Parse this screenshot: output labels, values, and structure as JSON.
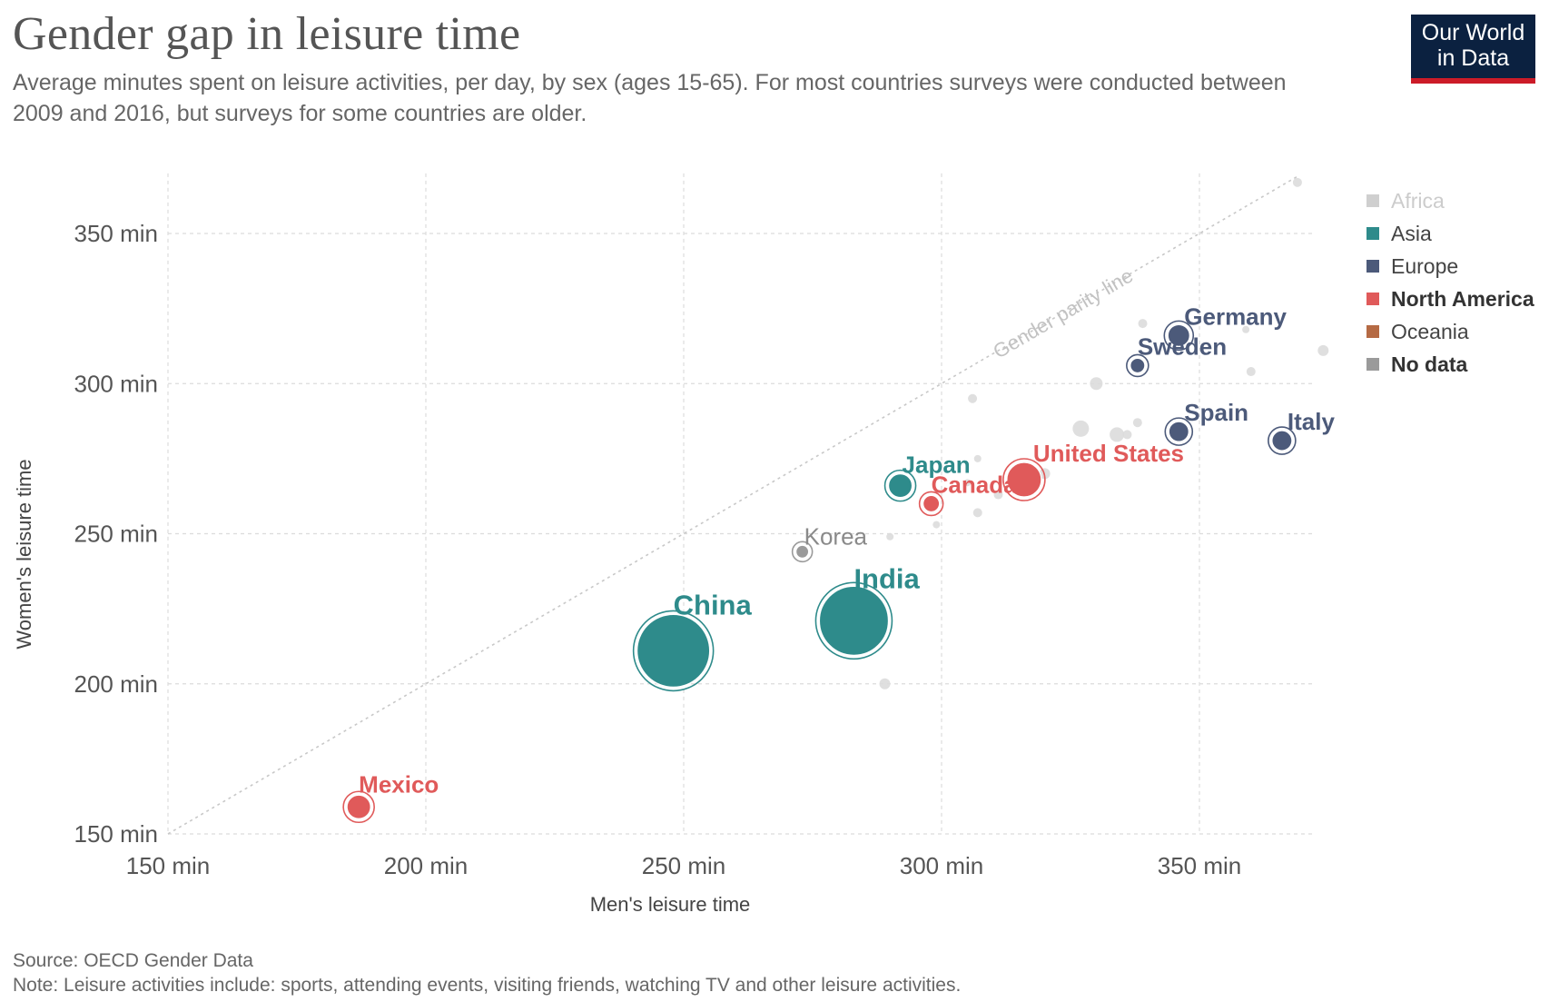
{
  "header": {
    "title": "Gender gap in leisure time",
    "subtitle": "Average minutes spent on leisure activities, per day, by sex (ages 15-65). For most countries surveys were conducted between 2009 and 2016, but surveys for some countries are older."
  },
  "logo": {
    "line1": "Our World",
    "line2": "in Data",
    "bg_color": "#0b2140",
    "accent_color": "#cc1b28"
  },
  "footer": {
    "source": "Source: OECD Gender Data",
    "note": "Note: Leisure activities include: sports, attending events, visiting friends, watching TV and other leisure activities."
  },
  "legend": [
    {
      "label": "Africa",
      "color": "#cfcfcf",
      "faded": true
    },
    {
      "label": "Asia",
      "color": "#2e8b8b"
    },
    {
      "label": "Europe",
      "color": "#4c5a7a"
    },
    {
      "label": "North America",
      "color": "#e05a5a",
      "bold": true
    },
    {
      "label": "Oceania",
      "color": "#b56a44"
    },
    {
      "label": "No data",
      "color": "#9a9a9a",
      "bold": true
    }
  ],
  "chart_data": {
    "type": "scatter",
    "title": "Gender gap in leisure time",
    "xlabel": "Men's leisure time",
    "ylabel": "Women's leisure time",
    "xlim": [
      150,
      375
    ],
    "ylim": [
      150,
      370
    ],
    "x_ticks": [
      150,
      200,
      250,
      300,
      350
    ],
    "x_tick_labels": [
      "150 min",
      "200 min",
      "250 min",
      "300 min",
      "350 min"
    ],
    "y_ticks": [
      150,
      200,
      250,
      300,
      350
    ],
    "y_tick_labels": [
      "150 min",
      "200 min",
      "250 min",
      "300 min",
      "350 min"
    ],
    "grid": true,
    "legend_position": "right",
    "parity_line_label": "Gender parity line",
    "labeled_points": [
      {
        "label": "Germany",
        "x": 346,
        "y": 316,
        "region": "Europe",
        "size": 12
      },
      {
        "label": "Sweden",
        "x": 338,
        "y": 306,
        "region": "Europe",
        "size": 8
      },
      {
        "label": "Spain",
        "x": 346,
        "y": 284,
        "region": "Europe",
        "size": 11
      },
      {
        "label": "Italy",
        "x": 366,
        "y": 281,
        "region": "Europe",
        "size": 11
      },
      {
        "label": "United States",
        "x": 316,
        "y": 268,
        "region": "North America",
        "size": 19
      },
      {
        "label": "Japan",
        "x": 292,
        "y": 266,
        "region": "Asia",
        "size": 13
      },
      {
        "label": "Canada",
        "x": 298,
        "y": 260,
        "region": "North America",
        "size": 9
      },
      {
        "label": "Korea",
        "x": 273,
        "y": 244,
        "region": "No data",
        "size": 7
      },
      {
        "label": "India",
        "x": 283,
        "y": 221,
        "region": "Asia",
        "size": 38
      },
      {
        "label": "China",
        "x": 248,
        "y": 211,
        "region": "Asia",
        "size": 40
      },
      {
        "label": "Mexico",
        "x": 187,
        "y": 159,
        "region": "North America",
        "size": 13
      }
    ],
    "unlabeled_points": [
      {
        "x": 369,
        "y": 367,
        "size": 5
      },
      {
        "x": 374,
        "y": 311,
        "size": 6
      },
      {
        "x": 339,
        "y": 320,
        "size": 5
      },
      {
        "x": 359,
        "y": 318,
        "size": 4
      },
      {
        "x": 360,
        "y": 304,
        "size": 5
      },
      {
        "x": 330,
        "y": 300,
        "size": 7
      },
      {
        "x": 306,
        "y": 295,
        "size": 5
      },
      {
        "x": 327,
        "y": 285,
        "size": 9
      },
      {
        "x": 338,
        "y": 287,
        "size": 5
      },
      {
        "x": 334,
        "y": 283,
        "size": 8
      },
      {
        "x": 336,
        "y": 283,
        "size": 5
      },
      {
        "x": 307,
        "y": 275,
        "size": 4
      },
      {
        "x": 305,
        "y": 267,
        "size": 4
      },
      {
        "x": 320,
        "y": 270,
        "size": 6
      },
      {
        "x": 311,
        "y": 263,
        "size": 5
      },
      {
        "x": 307,
        "y": 257,
        "size": 5
      },
      {
        "x": 299,
        "y": 253,
        "size": 4
      },
      {
        "x": 290,
        "y": 249,
        "size": 4
      },
      {
        "x": 289,
        "y": 200,
        "size": 6
      }
    ]
  }
}
